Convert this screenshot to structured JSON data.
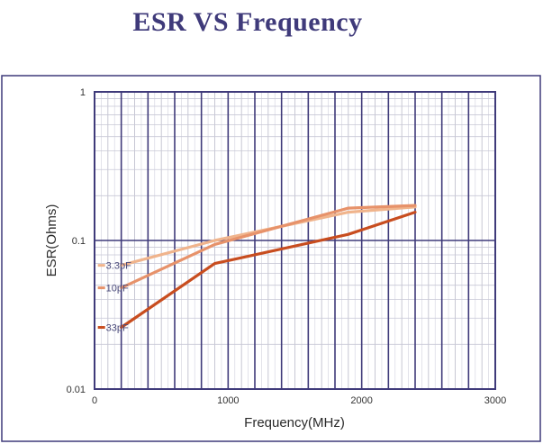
{
  "chart_data": {
    "type": "line",
    "title": "ESR VS Frequency",
    "xlabel": "Frequency(MHz)",
    "ylabel": "ESR(Ohms)",
    "xlim": [
      0,
      3000
    ],
    "ylim": [
      0.01,
      1
    ],
    "yscale": "log",
    "x_ticks": [
      0,
      1000,
      2000,
      3000
    ],
    "x_tick_labels": [
      "0",
      "1000",
      "2000",
      "3000"
    ],
    "y_ticks": [
      0.01,
      0.1,
      1
    ],
    "y_tick_labels": [
      "0.01",
      "0.1",
      "1"
    ],
    "grid": true,
    "frame_color": "#3f3a7a",
    "series": [
      {
        "name": "3.3pF",
        "color": "#f0b48c",
        "x": [
          200,
          900,
          1900,
          2400
        ],
        "y": [
          0.068,
          0.1,
          0.155,
          0.168
        ]
      },
      {
        "name": "10pF",
        "color": "#e7926a",
        "x": [
          200,
          900,
          1900,
          2400
        ],
        "y": [
          0.048,
          0.094,
          0.165,
          0.172
        ]
      },
      {
        "name": "33pF",
        "color": "#c84d1f",
        "x": [
          200,
          900,
          1900,
          2400
        ],
        "y": [
          0.026,
          0.07,
          0.11,
          0.155
        ]
      }
    ]
  }
}
